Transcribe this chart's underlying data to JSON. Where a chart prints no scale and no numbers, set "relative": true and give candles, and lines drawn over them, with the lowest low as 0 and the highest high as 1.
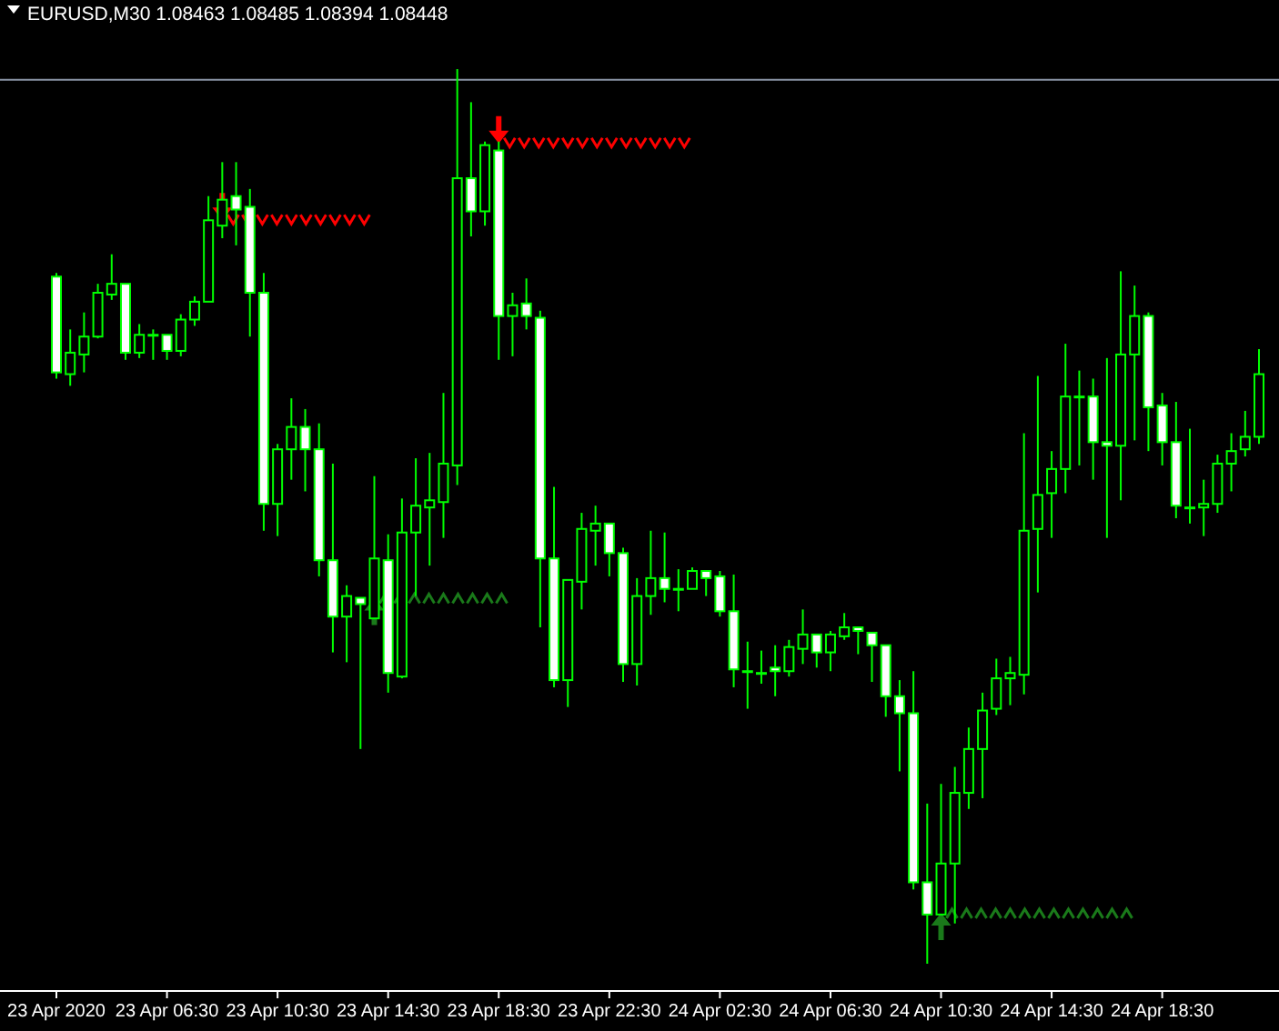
{
  "chart_data": {
    "type": "candlestick",
    "title": "EURUSD,M30 1.08463 1.08485 1.08394 1.08448",
    "relative": true,
    "color": "#00ff00",
    "categories": [
      "23 Apr 2020",
      null,
      null,
      null,
      null,
      null,
      null,
      null,
      "23 Apr 06:30",
      null,
      null,
      null,
      null,
      null,
      null,
      null,
      "23 Apr 10:30",
      null,
      null,
      null,
      null,
      null,
      null,
      null,
      "23 Apr 14:30",
      null,
      null,
      null,
      null,
      null,
      null,
      null,
      "23 Apr 18:30",
      null,
      null,
      null,
      null,
      null,
      null,
      null,
      "23 Apr 22:30",
      null,
      null,
      null,
      null,
      null,
      null,
      null,
      "24 Apr 02:30",
      null,
      null,
      null,
      null,
      null,
      null,
      null,
      "24 Apr 06:30",
      null,
      null,
      null,
      null,
      null,
      null,
      null,
      "24 Apr 10:30",
      null,
      null,
      null,
      null,
      null,
      null,
      null,
      "24 Apr 14:30",
      null,
      null,
      null,
      null,
      null,
      null,
      null,
      "24 Apr 18:30",
      null,
      null,
      null,
      null,
      null,
      null,
      null
    ],
    "ohlc": [
      [
        0.768,
        0.772,
        0.654,
        0.661
      ],
      [
        0.659,
        0.709,
        0.646,
        0.683
      ],
      [
        0.681,
        0.728,
        0.661,
        0.701
      ],
      [
        0.701,
        0.76,
        0.699,
        0.75
      ],
      [
        0.748,
        0.793,
        0.742,
        0.76
      ],
      [
        0.76,
        0.76,
        0.675,
        0.683
      ],
      [
        0.683,
        0.715,
        0.677,
        0.703
      ],
      [
        0.703,
        0.709,
        0.675,
        0.703
      ],
      [
        0.703,
        0.703,
        0.675,
        0.685
      ],
      [
        0.685,
        0.726,
        0.679,
        0.72
      ],
      [
        0.72,
        0.746,
        0.713,
        0.74
      ],
      [
        0.74,
        0.858,
        0.74,
        0.831
      ],
      [
        0.825,
        0.896,
        0.811,
        0.854
      ],
      [
        0.858,
        0.896,
        0.803,
        0.843
      ],
      [
        0.846,
        0.866,
        0.701,
        0.75
      ],
      [
        0.75,
        0.772,
        0.484,
        0.514
      ],
      [
        0.514,
        0.581,
        0.478,
        0.575
      ],
      [
        0.575,
        0.632,
        0.541,
        0.6
      ],
      [
        0.6,
        0.62,
        0.528,
        0.575
      ],
      [
        0.575,
        0.604,
        0.433,
        0.451
      ],
      [
        0.451,
        0.559,
        0.348,
        0.388
      ],
      [
        0.388,
        0.423,
        0.337,
        0.411
      ],
      [
        0.409,
        0.409,
        0.24,
        0.402
      ],
      [
        0.386,
        0.545,
        0.386,
        0.453
      ],
      [
        0.451,
        0.48,
        0.303,
        0.325
      ],
      [
        0.321,
        0.52,
        0.319,
        0.482
      ],
      [
        0.482,
        0.565,
        0.411,
        0.512
      ],
      [
        0.51,
        0.571,
        0.445,
        0.518
      ],
      [
        0.516,
        0.638,
        0.476,
        0.559
      ],
      [
        0.557,
        1,
        0.535,
        0.878
      ],
      [
        0.878,
        0.963,
        0.813,
        0.841
      ],
      [
        0.841,
        0.919,
        0.825,
        0.915
      ],
      [
        0.909,
        0.919,
        0.675,
        0.724
      ],
      [
        0.724,
        0.75,
        0.679,
        0.736
      ],
      [
        0.738,
        0.766,
        0.709,
        0.724
      ],
      [
        0.722,
        0.73,
        0.376,
        0.453
      ],
      [
        0.453,
        0.533,
        0.309,
        0.317
      ],
      [
        0.317,
        0.429,
        0.287,
        0.429
      ],
      [
        0.427,
        0.504,
        0.396,
        0.486
      ],
      [
        0.484,
        0.512,
        0.445,
        0.492
      ],
      [
        0.492,
        0.492,
        0.433,
        0.459
      ],
      [
        0.459,
        0.465,
        0.315,
        0.335
      ],
      [
        0.335,
        0.431,
        0.311,
        0.411
      ],
      [
        0.411,
        0.484,
        0.39,
        0.431
      ],
      [
        0.431,
        0.482,
        0.404,
        0.419
      ],
      [
        0.419,
        0.441,
        0.394,
        0.419
      ],
      [
        0.419,
        0.443,
        0.419,
        0.439
      ],
      [
        0.439,
        0.439,
        0.411,
        0.431
      ],
      [
        0.433,
        0.439,
        0.388,
        0.394
      ],
      [
        0.394,
        0.435,
        0.309,
        0.329
      ],
      [
        0.327,
        0.36,
        0.285,
        0.327
      ],
      [
        0.325,
        0.35,
        0.313,
        0.325
      ],
      [
        0.331,
        0.356,
        0.299,
        0.327
      ],
      [
        0.327,
        0.362,
        0.321,
        0.354
      ],
      [
        0.352,
        0.396,
        0.335,
        0.368
      ],
      [
        0.368,
        0.368,
        0.331,
        0.348
      ],
      [
        0.348,
        0.372,
        0.327,
        0.368
      ],
      [
        0.366,
        0.392,
        0.362,
        0.376
      ],
      [
        0.376,
        0.376,
        0.346,
        0.372
      ],
      [
        0.37,
        0.37,
        0.315,
        0.356
      ],
      [
        0.356,
        0.356,
        0.276,
        0.299
      ],
      [
        0.299,
        0.317,
        0.215,
        0.28
      ],
      [
        0.28,
        0.327,
        0.083,
        0.091
      ],
      [
        0.091,
        0.179,
        0,
        0.055
      ],
      [
        0.055,
        0.201,
        0.055,
        0.112
      ],
      [
        0.112,
        0.22,
        0.045,
        0.191
      ],
      [
        0.191,
        0.264,
        0.173,
        0.24
      ],
      [
        0.24,
        0.303,
        0.185,
        0.283
      ],
      [
        0.285,
        0.341,
        0.278,
        0.319
      ],
      [
        0.319,
        0.343,
        0.289,
        0.325
      ],
      [
        0.323,
        0.593,
        0.301,
        0.484
      ],
      [
        0.486,
        0.657,
        0.415,
        0.524
      ],
      [
        0.526,
        0.573,
        0.476,
        0.553
      ],
      [
        0.553,
        0.693,
        0.526,
        0.634
      ],
      [
        0.634,
        0.663,
        0.557,
        0.634
      ],
      [
        0.634,
        0.654,
        0.541,
        0.583
      ],
      [
        0.583,
        0.677,
        0.476,
        0.579
      ],
      [
        0.579,
        0.774,
        0.518,
        0.681
      ],
      [
        0.681,
        0.758,
        0.585,
        0.724
      ],
      [
        0.724,
        0.728,
        0.573,
        0.622
      ],
      [
        0.624,
        0.638,
        0.557,
        0.583
      ],
      [
        0.583,
        0.628,
        0.498,
        0.512
      ],
      [
        0.51,
        0.598,
        0.492,
        0.51
      ],
      [
        0.51,
        0.541,
        0.478,
        0.514
      ],
      [
        0.514,
        0.569,
        0.504,
        0.559
      ],
      [
        0.559,
        0.593,
        0.528,
        0.573
      ],
      [
        0.575,
        0.618,
        0.567,
        0.589
      ],
      [
        0.589,
        0.687,
        0.581,
        0.659
      ]
    ],
    "ref_lines": [
      {
        "axis": "y",
        "value": 0.988,
        "color": "#8a94a6"
      }
    ]
  }
}
